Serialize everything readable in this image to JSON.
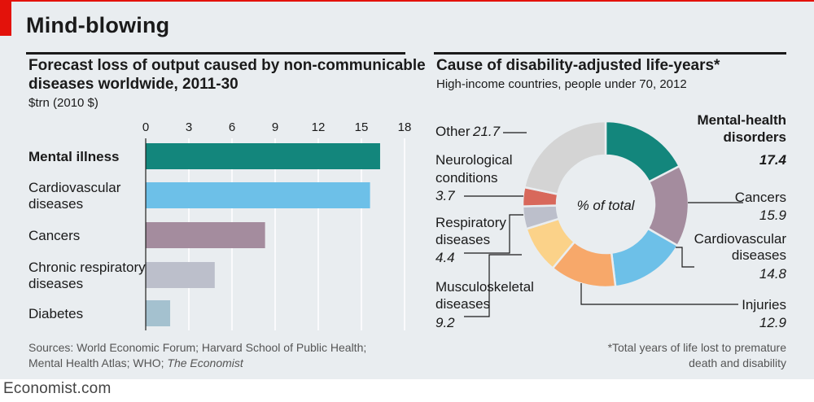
{
  "header": {
    "title": "Mind-blowing",
    "brand": "Economist.com"
  },
  "left_chart": {
    "title_line1": "Forecast loss of output caused by non-communicable",
    "title_line2": "diseases worldwide, 2011-30",
    "unit": "$trn (2010 $)"
  },
  "right_chart": {
    "title": "Cause of disability-adjusted life-years*",
    "subtitle": "High-income countries, people under 70, 2012",
    "center_label": "% of total"
  },
  "footer": {
    "sources_line1": "Sources: World Economic Forum; Harvard School of Public Health;",
    "sources_line2_plain": "Mental Health Atlas; WHO;",
    "sources_line2_italic": "The Economist",
    "note_line1": "*Total years of life lost to premature",
    "note_line2": "death and disability"
  },
  "chart_data": [
    {
      "type": "bar",
      "orientation": "horizontal",
      "title": "Forecast loss of output caused by non-communicable diseases worldwide, 2011-30",
      "unit": "$trn (2010 $)",
      "xlim": [
        0,
        18
      ],
      "ticks": [
        0,
        3,
        6,
        9,
        12,
        15,
        18
      ],
      "categories": [
        {
          "label_lines": [
            "Mental illness"
          ],
          "value": 16.3,
          "color": "#13867c",
          "bold": true
        },
        {
          "label_lines": [
            "Cardiovascular",
            "diseases"
          ],
          "value": 15.6,
          "color": "#6dc0e8",
          "bold": false
        },
        {
          "label_lines": [
            "Cancers"
          ],
          "value": 8.3,
          "color": "#a48c9e",
          "bold": false
        },
        {
          "label_lines": [
            "Chronic respiratory",
            "diseases"
          ],
          "value": 4.8,
          "color": "#bcbfcb",
          "bold": false
        },
        {
          "label_lines": [
            "Diabetes"
          ],
          "value": 1.7,
          "color": "#a4c1cf",
          "bold": false
        }
      ]
    },
    {
      "type": "pie",
      "variant": "donut",
      "title": "Cause of disability-adjusted life-years*",
      "subtitle": "High-income countries, people under 70, 2012",
      "center_label": "% of total",
      "slices": [
        {
          "label_lines": [
            "Mental-health",
            "disorders"
          ],
          "value": 17.4,
          "display": "17.4",
          "color": "#13867c",
          "bold": true
        },
        {
          "label_lines": [
            "Cancers"
          ],
          "value": 15.9,
          "display": "15.9",
          "color": "#a48c9e",
          "bold": false
        },
        {
          "label_lines": [
            "Cardiovascular",
            "diseases"
          ],
          "value": 14.8,
          "display": "14.8",
          "color": "#6dc0e8",
          "bold": false
        },
        {
          "label_lines": [
            "Injuries"
          ],
          "value": 12.9,
          "display": "12.9",
          "color": "#f7a86a",
          "bold": false
        },
        {
          "label_lines": [
            "Musculoskeletal",
            "diseases"
          ],
          "value": 9.2,
          "display": "9.2",
          "color": "#fbd289",
          "bold": false
        },
        {
          "label_lines": [
            "Respiratory",
            "diseases"
          ],
          "value": 4.4,
          "display": "4.4",
          "color": "#bcbfcb",
          "bold": false
        },
        {
          "label_lines": [
            "Neurological",
            "conditions"
          ],
          "value": 3.7,
          "display": "3.7",
          "color": "#d8685b",
          "bold": false
        },
        {
          "label_lines": [
            "Other"
          ],
          "value": 21.7,
          "display": "21.7",
          "color": "#d4d4d4",
          "bold": false
        }
      ]
    }
  ]
}
